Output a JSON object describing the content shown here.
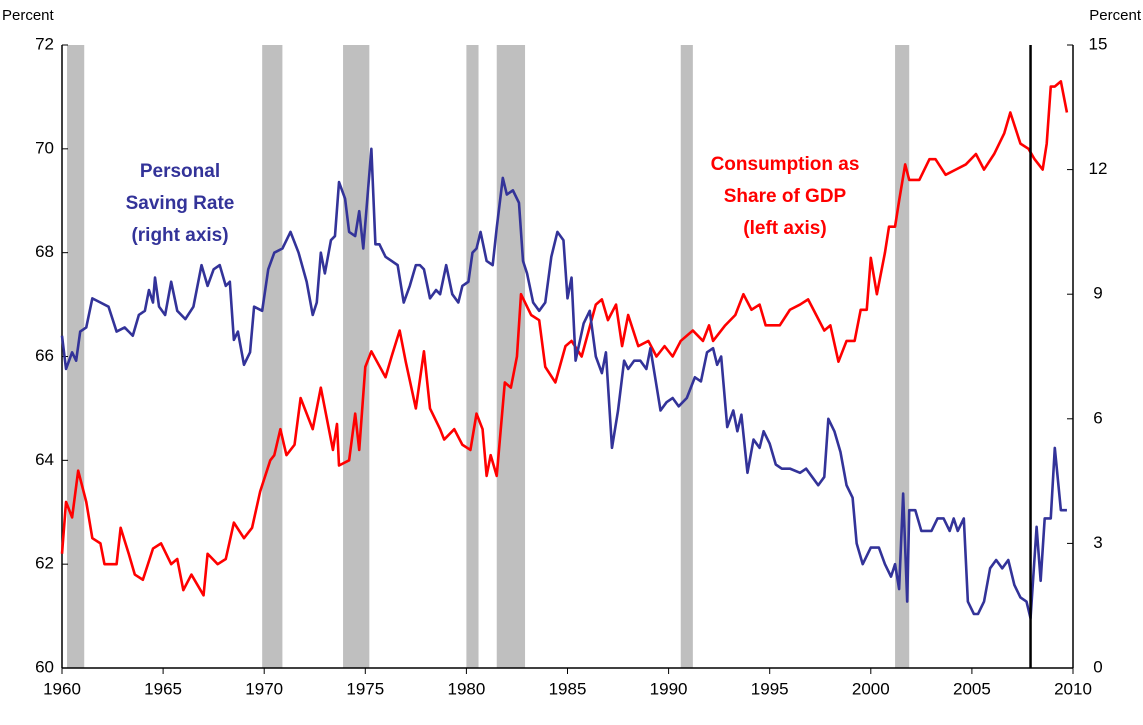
{
  "chart_data": {
    "type": "line",
    "y_axis_label": "Percent",
    "y2_axis_label": "Percent",
    "xlim": [
      1960,
      2010
    ],
    "xticks": [
      1960,
      1965,
      1970,
      1975,
      1980,
      1985,
      1990,
      1995,
      2000,
      2005,
      2010
    ],
    "ylim": [
      60,
      72
    ],
    "yticks": [
      60,
      62,
      64,
      66,
      68,
      70,
      72
    ],
    "y2lim": [
      0,
      15
    ],
    "y2ticks": [
      0,
      3,
      6,
      9,
      12,
      15
    ],
    "recessions": [
      [
        1960.25,
        1961.1
      ],
      [
        1969.9,
        1970.9
      ],
      [
        1973.9,
        1975.2
      ],
      [
        1980.0,
        1980.6
      ],
      [
        1981.5,
        1982.9
      ],
      [
        1990.6,
        1991.2
      ],
      [
        2001.2,
        2001.9
      ]
    ],
    "recession_color": "#bfbfbf",
    "vline": 2007.9,
    "annotations": [
      {
        "lines": [
          "Personal",
          "Saving Rate",
          "(right axis)"
        ],
        "color": "#333399"
      },
      {
        "lines": [
          "Consumption as",
          "Share of GDP",
          "(left axis)"
        ],
        "color": "#ff0000"
      }
    ],
    "series": [
      {
        "name": "Consumption as Share of GDP",
        "color": "#ff0000",
        "axis": "y",
        "x": [
          1960.0,
          1960.2,
          1960.5,
          1960.8,
          1961.2,
          1961.5,
          1961.9,
          1962.1,
          1962.7,
          1962.9,
          1963.3,
          1963.6,
          1964.0,
          1964.5,
          1964.9,
          1965.4,
          1965.7,
          1966.0,
          1966.4,
          1967.0,
          1967.2,
          1967.7,
          1968.1,
          1968.5,
          1969.0,
          1969.4,
          1969.8,
          1970.3,
          1970.5,
          1970.8,
          1971.1,
          1971.5,
          1971.8,
          1972.4,
          1972.8,
          1973.4,
          1973.6,
          1973.7,
          1974.2,
          1974.5,
          1974.7,
          1975.0,
          1975.3,
          1976.0,
          1976.3,
          1976.7,
          1977.0,
          1977.5,
          1977.9,
          1978.2,
          1978.7,
          1978.9,
          1979.4,
          1979.8,
          1980.2,
          1980.5,
          1980.8,
          1981.0,
          1981.2,
          1981.5,
          1981.9,
          1982.2,
          1982.5,
          1982.7,
          1983.2,
          1983.6,
          1983.9,
          1984.4,
          1984.9,
          1985.2,
          1985.7,
          1986.4,
          1986.7,
          1987.0,
          1987.4,
          1987.7,
          1988.0,
          1988.5,
          1989.0,
          1989.4,
          1989.8,
          1990.2,
          1990.6,
          1991.2,
          1991.7,
          1992.0,
          1992.2,
          1992.8,
          1993.3,
          1993.7,
          1994.1,
          1994.5,
          1994.8,
          1995.5,
          1996.0,
          1996.5,
          1996.9,
          1997.3,
          1997.7,
          1998.0,
          1998.4,
          1998.8,
          1999.2,
          1999.5,
          1999.8,
          2000.0,
          2000.3,
          2000.7,
          2000.9,
          2001.2,
          2001.4,
          2001.7,
          2001.9,
          2002.4,
          2002.9,
          2003.2,
          2003.7,
          2004.2,
          2004.7,
          2005.2,
          2005.6,
          2006.1,
          2006.6,
          2006.9,
          2007.4,
          2007.8,
          2008.1,
          2008.5,
          2008.7,
          2008.9,
          2009.1,
          2009.4,
          2009.7
        ],
        "values": [
          62.2,
          63.2,
          62.9,
          63.8,
          63.2,
          62.5,
          62.4,
          62.0,
          62.0,
          62.7,
          62.2,
          61.8,
          61.7,
          62.3,
          62.4,
          62.0,
          62.1,
          61.5,
          61.8,
          61.4,
          62.2,
          62.0,
          62.1,
          62.8,
          62.5,
          62.7,
          63.4,
          64.0,
          64.1,
          64.6,
          64.1,
          64.3,
          65.2,
          64.6,
          65.4,
          64.2,
          64.7,
          63.9,
          64.0,
          64.9,
          64.2,
          65.8,
          66.1,
          65.6,
          66.0,
          66.5,
          65.9,
          65.0,
          66.1,
          65.0,
          64.6,
          64.4,
          64.6,
          64.3,
          64.2,
          64.9,
          64.6,
          63.7,
          64.1,
          63.7,
          65.5,
          65.4,
          66.0,
          67.2,
          66.8,
          66.7,
          65.8,
          65.5,
          66.2,
          66.3,
          66.0,
          67.0,
          67.1,
          66.7,
          67.0,
          66.2,
          66.8,
          66.2,
          66.3,
          66.0,
          66.2,
          66.0,
          66.3,
          66.5,
          66.3,
          66.6,
          66.3,
          66.6,
          66.8,
          67.2,
          66.9,
          67.0,
          66.6,
          66.6,
          66.9,
          67.0,
          67.1,
          66.8,
          66.5,
          66.6,
          65.9,
          66.3,
          66.3,
          66.9,
          66.9,
          67.9,
          67.2,
          68.0,
          68.5,
          68.5,
          69.0,
          69.7,
          69.4,
          69.4,
          69.8,
          69.8,
          69.5,
          69.6,
          69.7,
          69.9,
          69.6,
          69.9,
          70.3,
          70.7,
          70.1,
          70.0,
          69.8,
          69.6,
          70.1,
          71.2,
          71.2,
          71.3,
          70.7
        ]
      },
      {
        "name": "Personal Saving Rate",
        "color": "#333399",
        "axis": "y2",
        "x": [
          1960.0,
          1960.2,
          1960.5,
          1960.7,
          1960.9,
          1961.2,
          1961.5,
          1961.9,
          1962.3,
          1962.7,
          1963.1,
          1963.5,
          1963.8,
          1964.1,
          1964.3,
          1964.5,
          1964.6,
          1964.8,
          1965.1,
          1965.4,
          1965.7,
          1966.1,
          1966.5,
          1966.9,
          1967.2,
          1967.5,
          1967.8,
          1968.1,
          1968.3,
          1968.5,
          1968.7,
          1969.0,
          1969.3,
          1969.5,
          1969.9,
          1970.2,
          1970.5,
          1970.9,
          1971.3,
          1971.7,
          1972.1,
          1972.4,
          1972.6,
          1972.8,
          1973.0,
          1973.3,
          1973.5,
          1973.7,
          1974.0,
          1974.2,
          1974.5,
          1974.7,
          1974.9,
          1975.3,
          1975.5,
          1975.7,
          1976.0,
          1976.3,
          1976.6,
          1976.9,
          1977.2,
          1977.5,
          1977.7,
          1977.9,
          1978.2,
          1978.5,
          1978.7,
          1979.0,
          1979.3,
          1979.6,
          1979.8,
          1980.1,
          1980.3,
          1980.5,
          1980.7,
          1981.0,
          1981.3,
          1981.5,
          1981.8,
          1982.0,
          1982.3,
          1982.6,
          1982.8,
          1983.0,
          1983.3,
          1983.6,
          1983.9,
          1984.2,
          1984.5,
          1984.8,
          1985.0,
          1985.2,
          1985.4,
          1985.8,
          1986.1,
          1986.4,
          1986.7,
          1986.9,
          1987.2,
          1987.5,
          1987.8,
          1988.0,
          1988.3,
          1988.6,
          1988.9,
          1989.1,
          1989.4,
          1989.6,
          1989.9,
          1990.2,
          1990.5,
          1990.9,
          1991.3,
          1991.6,
          1991.9,
          1992.2,
          1992.4,
          1992.6,
          1992.9,
          1993.2,
          1993.4,
          1993.6,
          1993.9,
          1994.2,
          1994.5,
          1994.7,
          1995.0,
          1995.3,
          1995.6,
          1996.0,
          1996.5,
          1996.8,
          1997.1,
          1997.4,
          1997.7,
          1997.9,
          1998.2,
          1998.5,
          1998.8,
          1999.1,
          1999.3,
          1999.6,
          2000.0,
          2000.4,
          2000.7,
          2001.0,
          2001.2,
          2001.4,
          2001.6,
          2001.8,
          2001.9,
          2002.2,
          2002.5,
          2003.0,
          2003.3,
          2003.6,
          2003.9,
          2004.1,
          2004.3,
          2004.6,
          2004.8,
          2005.1,
          2005.3,
          2005.6,
          2005.9,
          2006.2,
          2006.5,
          2006.8,
          2007.1,
          2007.4,
          2007.7,
          2007.9,
          2008.2,
          2008.4,
          2008.6,
          2008.9,
          2009.1,
          2009.4,
          2009.7
        ],
        "values": [
          8.0,
          7.2,
          7.6,
          7.4,
          8.1,
          8.2,
          8.9,
          8.8,
          8.7,
          8.1,
          8.2,
          8.0,
          8.5,
          8.6,
          9.1,
          8.8,
          9.4,
          8.7,
          8.5,
          9.3,
          8.6,
          8.4,
          8.7,
          9.7,
          9.2,
          9.6,
          9.7,
          9.2,
          9.3,
          7.9,
          8.1,
          7.3,
          7.6,
          8.7,
          8.6,
          9.6,
          10.0,
          10.1,
          10.5,
          10.0,
          9.3,
          8.5,
          8.8,
          10.0,
          9.5,
          10.3,
          10.4,
          11.7,
          11.3,
          10.5,
          10.4,
          11.0,
          10.1,
          12.5,
          10.2,
          10.2,
          9.9,
          9.8,
          9.7,
          8.8,
          9.2,
          9.7,
          9.7,
          9.6,
          8.9,
          9.1,
          9.0,
          9.7,
          9.0,
          8.8,
          9.2,
          9.3,
          10.0,
          10.1,
          10.5,
          9.8,
          9.7,
          10.6,
          11.8,
          11.4,
          11.5,
          11.2,
          9.8,
          9.5,
          8.8,
          8.6,
          8.8,
          9.9,
          10.5,
          10.3,
          8.9,
          9.4,
          7.4,
          8.3,
          8.6,
          7.5,
          7.1,
          7.6,
          5.3,
          6.2,
          7.4,
          7.2,
          7.4,
          7.4,
          7.2,
          7.7,
          6.8,
          6.2,
          6.4,
          6.5,
          6.3,
          6.5,
          7.0,
          6.9,
          7.6,
          7.7,
          7.3,
          7.5,
          5.8,
          6.2,
          5.7,
          6.1,
          4.7,
          5.5,
          5.3,
          5.7,
          5.4,
          4.9,
          4.8,
          4.8,
          4.7,
          4.8,
          4.6,
          4.4,
          4.6,
          6.0,
          5.7,
          5.2,
          4.4,
          4.1,
          3.0,
          2.5,
          2.9,
          2.9,
          2.5,
          2.2,
          2.5,
          1.9,
          4.2,
          1.6,
          3.8,
          3.8,
          3.3,
          3.3,
          3.6,
          3.6,
          3.3,
          3.6,
          3.3,
          3.6,
          1.6,
          1.3,
          1.3,
          1.6,
          2.4,
          2.6,
          2.4,
          2.6,
          2.0,
          1.7,
          1.6,
          1.2,
          3.4,
          2.1,
          3.6,
          3.6,
          5.3,
          3.8,
          3.8
        ]
      }
    ]
  }
}
